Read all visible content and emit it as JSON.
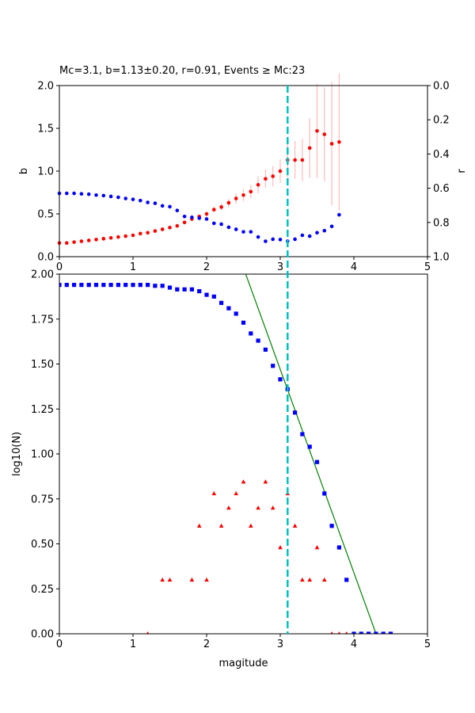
{
  "chart_data": [
    {
      "type": "scatter",
      "title": "Mc=3.1, b=1.13±0.20, r=0.91, Events ≥ Mc:23",
      "xlabel": "",
      "ylabel": "b",
      "ylabel_right": "r",
      "xlim": [
        0,
        5
      ],
      "ylim": [
        0,
        2
      ],
      "ylim_right": [
        1,
        0
      ],
      "xticks": [
        "0",
        "1",
        "2",
        "3",
        "4",
        "5"
      ],
      "yticks": [
        "0.0",
        "0.5",
        "1.0",
        "1.5",
        "2.0"
      ],
      "yticks_right": [
        "0.0",
        "0.2",
        "0.4",
        "0.6",
        "0.8",
        "1.0"
      ],
      "mc_line": 3.1,
      "colors": {
        "b": "#ff0000",
        "r": "#0000ff",
        "err": "#ffc0c0",
        "mc": "#00bfbf"
      },
      "series": [
        {
          "key": "b",
          "axis": "left",
          "x": [
            0.0,
            0.1,
            0.2,
            0.3,
            0.4,
            0.5,
            0.6,
            0.7,
            0.8,
            0.9,
            1.0,
            1.1,
            1.2,
            1.3,
            1.4,
            1.5,
            1.6,
            1.7,
            1.8,
            1.9,
            2.0,
            2.1,
            2.2,
            2.3,
            2.4,
            2.5,
            2.6,
            2.7,
            2.8,
            2.9,
            3.0,
            3.1,
            3.2,
            3.3,
            3.4,
            3.5,
            3.6,
            3.7,
            3.8
          ],
          "values": [
            0.16,
            0.16,
            0.17,
            0.18,
            0.19,
            0.2,
            0.21,
            0.22,
            0.23,
            0.24,
            0.25,
            0.27,
            0.28,
            0.3,
            0.32,
            0.34,
            0.36,
            0.4,
            0.44,
            0.47,
            0.5,
            0.55,
            0.58,
            0.63,
            0.68,
            0.72,
            0.76,
            0.84,
            0.91,
            0.94,
            1.0,
            1.13,
            1.13,
            1.13,
            1.27,
            1.47,
            1.43,
            1.32,
            1.34
          ],
          "err": [
            0.0,
            0.0,
            0.0,
            0.0,
            0.0,
            0.0,
            0.0,
            0.0,
            0.0,
            0.0,
            0.0,
            0.0,
            0.0,
            0.0,
            0.0,
            0.0,
            0.01,
            0.01,
            0.02,
            0.02,
            0.03,
            0.03,
            0.04,
            0.05,
            0.06,
            0.07,
            0.08,
            0.1,
            0.11,
            0.12,
            0.14,
            0.2,
            0.22,
            0.25,
            0.35,
            0.55,
            0.55,
            0.72,
            0.8
          ]
        },
        {
          "key": "r",
          "axis": "right",
          "x": [
            0.0,
            0.1,
            0.2,
            0.3,
            0.4,
            0.5,
            0.6,
            0.7,
            0.8,
            0.9,
            1.0,
            1.1,
            1.2,
            1.3,
            1.4,
            1.5,
            1.6,
            1.7,
            1.8,
            1.9,
            2.0,
            2.1,
            2.2,
            2.3,
            2.4,
            2.5,
            2.6,
            2.7,
            2.8,
            2.9,
            3.0,
            3.1,
            3.2,
            3.3,
            3.4,
            3.5,
            3.6,
            3.7,
            3.8
          ],
          "values": [
            0.63,
            0.63,
            0.63,
            0.633,
            0.635,
            0.64,
            0.643,
            0.648,
            0.653,
            0.66,
            0.665,
            0.672,
            0.683,
            0.688,
            0.703,
            0.708,
            0.73,
            0.765,
            0.77,
            0.775,
            0.78,
            0.805,
            0.81,
            0.828,
            0.84,
            0.855,
            0.855,
            0.885,
            0.91,
            0.898,
            0.9,
            0.91,
            0.898,
            0.875,
            0.88,
            0.86,
            0.848,
            0.823,
            0.755
          ]
        }
      ]
    },
    {
      "type": "scatter",
      "title": "",
      "xlabel": "magitude",
      "ylabel": "log10(N)",
      "xlim": [
        0,
        5
      ],
      "ylim": [
        0,
        2
      ],
      "xticks": [
        "0",
        "1",
        "2",
        "3",
        "4",
        "5"
      ],
      "yticks": [
        "0.00",
        "0.25",
        "0.50",
        "0.75",
        "1.00",
        "1.25",
        "1.50",
        "1.75",
        "2.00"
      ],
      "mc_line": 3.1,
      "colors": {
        "cumulative": "#0000ff",
        "noncumulative": "#ff0000",
        "fit": "#008000",
        "mc": "#00bfbf"
      },
      "fit_line": {
        "slope": -1.13,
        "intercept": 4.86
      },
      "series": [
        {
          "key": "cumulative",
          "x": [
            0.0,
            0.1,
            0.2,
            0.3,
            0.4,
            0.5,
            0.6,
            0.7,
            0.8,
            0.9,
            1.0,
            1.1,
            1.2,
            1.3,
            1.4,
            1.5,
            1.6,
            1.7,
            1.8,
            1.9,
            2.0,
            2.1,
            2.2,
            2.3,
            2.4,
            2.5,
            2.6,
            2.7,
            2.8,
            2.9,
            3.0,
            3.1,
            3.2,
            3.3,
            3.4,
            3.5,
            3.6,
            3.7,
            3.8,
            3.9,
            4.0,
            4.1,
            4.2,
            4.3,
            4.4,
            4.5
          ],
          "values": [
            1.94,
            1.94,
            1.94,
            1.94,
            1.94,
            1.94,
            1.94,
            1.94,
            1.94,
            1.94,
            1.94,
            1.94,
            1.94,
            1.935,
            1.935,
            1.925,
            1.915,
            1.915,
            1.915,
            1.905,
            1.885,
            1.875,
            1.84,
            1.81,
            1.78,
            1.73,
            1.67,
            1.63,
            1.58,
            1.49,
            1.415,
            1.36,
            1.23,
            1.11,
            1.04,
            0.955,
            0.78,
            0.6,
            0.48,
            0.3,
            0.0,
            0.0,
            0.0,
            0.0,
            0.0,
            0.0
          ]
        },
        {
          "key": "noncumulative",
          "x": [
            1.2,
            1.4,
            1.5,
            1.8,
            1.9,
            2.0,
            2.1,
            2.2,
            2.3,
            2.4,
            2.5,
            2.6,
            2.7,
            2.8,
            2.9,
            3.0,
            3.1,
            3.2,
            3.3,
            3.4,
            3.5,
            3.6,
            3.7,
            3.8,
            3.9
          ],
          "values": [
            0.0,
            0.3,
            0.3,
            0.3,
            0.6,
            0.3,
            0.78,
            0.6,
            0.7,
            0.78,
            0.845,
            0.6,
            0.7,
            0.845,
            0.7,
            0.48,
            0.78,
            0.6,
            0.3,
            0.3,
            0.48,
            0.3,
            0.0,
            0.0,
            0.0
          ]
        }
      ]
    }
  ]
}
